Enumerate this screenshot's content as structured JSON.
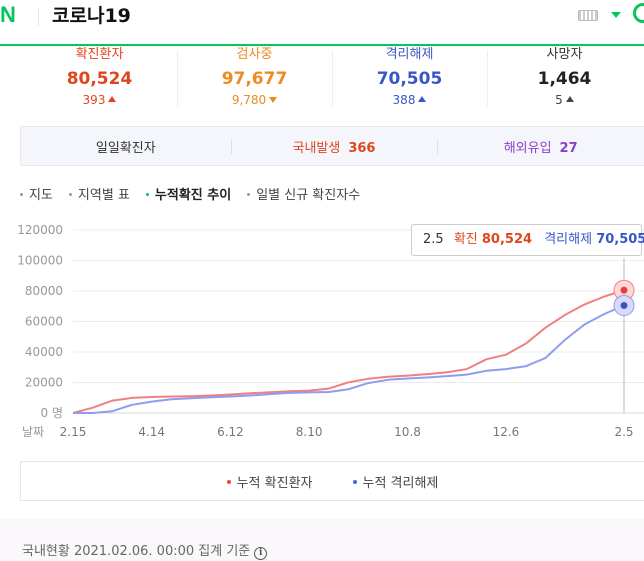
{
  "header": {
    "logo": "N",
    "title": "코로나19",
    "brand_color": "#03c75a",
    "icons": [
      "keyboard-icon",
      "dropdown-caret-icon",
      "search-circle-icon"
    ]
  },
  "stats": [
    {
      "label": "확진환자",
      "value": "80,524",
      "delta": "393",
      "direction": "up",
      "color": "#e0461d"
    },
    {
      "label": "검사중",
      "value": "97,677",
      "delta": "9,780",
      "direction": "down",
      "color": "#ec8a24"
    },
    {
      "label": "격리해제",
      "value": "70,505",
      "delta": "388",
      "direction": "up",
      "color": "#3a57c9"
    },
    {
      "label": "사망자",
      "value": "1,464",
      "delta": "5",
      "direction": "up",
      "color": "#222222"
    }
  ],
  "daily": {
    "title": "일일확진자",
    "domestic_label": "국내발생",
    "domestic_value": "366",
    "overseas_label": "해외유입",
    "overseas_value": "27"
  },
  "tabs": [
    "지도",
    "지역별 표",
    "누적확진 추이",
    "일별 신규 확진자수"
  ],
  "active_tab": 2,
  "tooltip": {
    "date": "2.5",
    "confirmed_label": "확진",
    "confirmed_value": "80,524",
    "released_label": "격리해제",
    "released_value": "70,505"
  },
  "chart_data": {
    "type": "line",
    "x_axis_label": "날짜",
    "x_ticks": [
      "2.15",
      "4.14",
      "6.12",
      "8.10",
      "10.8",
      "12.6",
      "2.5"
    ],
    "y_ticks": [
      "0 명",
      "20000",
      "40000",
      "60000",
      "80000",
      "100000",
      "120000"
    ],
    "ylim": [
      0,
      120000
    ],
    "grid": true,
    "x": [
      "2.15",
      "3.1",
      "3.15",
      "4.1",
      "4.14",
      "5.1",
      "5.15",
      "6.1",
      "6.12",
      "7.1",
      "7.15",
      "8.1",
      "8.10",
      "8.20",
      "9.1",
      "9.15",
      "10.1",
      "10.8",
      "10.20",
      "11.1",
      "11.15",
      "12.1",
      "12.6",
      "12.15",
      "12.25",
      "1.5",
      "1.15",
      "1.25",
      "2.5"
    ],
    "series": [
      {
        "name": "누적 확진환자",
        "color": "#f08080",
        "values": [
          28,
          3500,
          8100,
          9900,
          10500,
          10800,
          11000,
          11500,
          12100,
          12900,
          13600,
          14300,
          14700,
          16000,
          20100,
          22400,
          23800,
          24500,
          25500,
          26700,
          28800,
          35200,
          38200,
          45400,
          55900,
          64300,
          71200,
          76400,
          80524
        ]
      },
      {
        "name": "누적 격리해제",
        "color": "#8f9cf0",
        "values": [
          16,
          30,
          1200,
          5400,
          7500,
          9000,
          9700,
          10300,
          10800,
          11500,
          12400,
          13200,
          13500,
          13800,
          15600,
          19600,
          21800,
          22600,
          23300,
          24200,
          25200,
          27700,
          28800,
          30600,
          36000,
          48000,
          58100,
          64900,
          70505
        ]
      }
    ]
  },
  "legend": [
    {
      "label": "누적 확진환자",
      "color": "#e24a3b"
    },
    {
      "label": "누적 격리해제",
      "color": "#4a63d8"
    }
  ],
  "footer": {
    "text": "국내현황 2021.02.06. 00:00 집계 기준",
    "icon": "info-icon"
  }
}
